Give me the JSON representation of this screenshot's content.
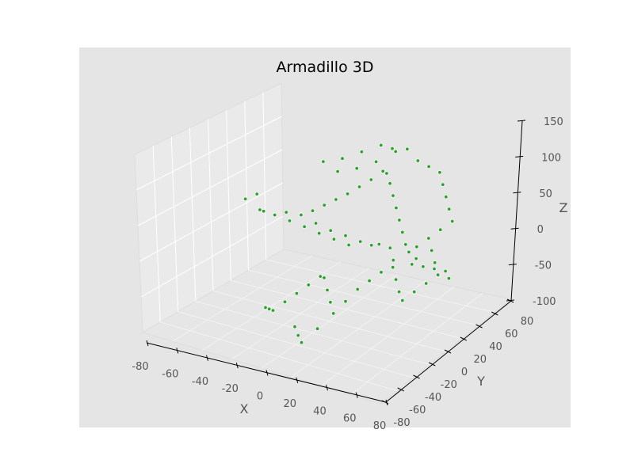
{
  "chart_data": {
    "type": "scatter",
    "projection": "3d",
    "title": "Armadillo 3D",
    "xlabel": "X",
    "ylabel": "Y",
    "zlabel": "Z",
    "xlim": [
      -80,
      80
    ],
    "ylim": [
      -80,
      80
    ],
    "zlim": [
      -100,
      150
    ],
    "xticks": [
      -80,
      -60,
      -40,
      -20,
      0,
      20,
      40,
      60,
      80
    ],
    "yticks": [
      -80,
      -60,
      -40,
      -20,
      0,
      20,
      40,
      60,
      80
    ],
    "zticks": [
      -100,
      -50,
      0,
      50,
      100,
      150
    ],
    "grid": true,
    "legend": "none",
    "colors": {
      "background": "#e5e5e5",
      "pane": "#ececec",
      "points": "#2ca02c",
      "point_edge": "#ffffff"
    },
    "series": [
      {
        "marker": "circle",
        "points": [
          [
            -60,
            0,
            40
          ],
          [
            -55,
            5,
            45
          ],
          [
            -50,
            0,
            30
          ],
          [
            -45,
            -5,
            35
          ],
          [
            -40,
            0,
            28
          ],
          [
            -35,
            5,
            30
          ],
          [
            -30,
            0,
            25
          ],
          [
            -25,
            5,
            32
          ],
          [
            -20,
            0,
            22
          ],
          [
            -15,
            5,
            25
          ],
          [
            -10,
            0,
            18
          ],
          [
            -5,
            5,
            20
          ],
          [
            0,
            0,
            15
          ],
          [
            5,
            5,
            18
          ],
          [
            10,
            0,
            12
          ],
          [
            15,
            5,
            15
          ],
          [
            20,
            10,
            8
          ],
          [
            25,
            10,
            12
          ],
          [
            30,
            15,
            5
          ],
          [
            35,
            10,
            -5
          ],
          [
            40,
            20,
            0
          ],
          [
            45,
            15,
            -10
          ],
          [
            50,
            20,
            -15
          ],
          [
            55,
            25,
            -20
          ],
          [
            60,
            30,
            -25
          ],
          [
            65,
            25,
            -28
          ],
          [
            -20,
            20,
            95
          ],
          [
            -10,
            25,
            100
          ],
          [
            0,
            30,
            110
          ],
          [
            10,
            35,
            120
          ],
          [
            20,
            30,
            125
          ],
          [
            25,
            40,
            118
          ],
          [
            15,
            45,
            105
          ],
          [
            5,
            40,
            90
          ],
          [
            -5,
            35,
            80
          ],
          [
            -15,
            30,
            75
          ],
          [
            30,
            45,
            100
          ],
          [
            35,
            50,
            90
          ],
          [
            40,
            55,
            80
          ],
          [
            45,
            50,
            70
          ],
          [
            50,
            45,
            60
          ],
          [
            55,
            40,
            50
          ],
          [
            60,
            35,
            40
          ],
          [
            55,
            30,
            30
          ],
          [
            50,
            25,
            20
          ],
          [
            45,
            20,
            10
          ],
          [
            40,
            15,
            15
          ],
          [
            35,
            20,
            25
          ],
          [
            30,
            25,
            35
          ],
          [
            25,
            30,
            45
          ],
          [
            20,
            35,
            55
          ],
          [
            15,
            40,
            65
          ],
          [
            10,
            45,
            72
          ],
          [
            5,
            50,
            68
          ],
          [
            0,
            45,
            58
          ],
          [
            -5,
            40,
            50
          ],
          [
            -10,
            35,
            42
          ],
          [
            -15,
            30,
            36
          ],
          [
            -20,
            25,
            30
          ],
          [
            -25,
            20,
            24
          ],
          [
            -30,
            15,
            20
          ],
          [
            0,
            -10,
            -30
          ],
          [
            5,
            -15,
            -40
          ],
          [
            10,
            -20,
            -50
          ],
          [
            -5,
            -5,
            -35
          ],
          [
            -10,
            -10,
            -45
          ],
          [
            -15,
            -15,
            -55
          ],
          [
            -20,
            -20,
            -65
          ],
          [
            -25,
            -25,
            -75
          ],
          [
            -30,
            -20,
            -80
          ],
          [
            -35,
            -15,
            -85
          ],
          [
            -10,
            -25,
            -90
          ],
          [
            -5,
            -30,
            -95
          ],
          [
            0,
            -35,
            -98
          ],
          [
            5,
            -25,
            -85
          ],
          [
            10,
            -15,
            -70
          ],
          [
            15,
            -10,
            -55
          ],
          [
            20,
            -5,
            -40
          ],
          [
            25,
            0,
            -30
          ],
          [
            30,
            5,
            -20
          ],
          [
            35,
            10,
            -15
          ],
          [
            40,
            5,
            -25
          ],
          [
            45,
            0,
            -35
          ],
          [
            50,
            -5,
            -40
          ],
          [
            55,
            0,
            -30
          ],
          [
            60,
            5,
            -20
          ],
          [
            65,
            10,
            -10
          ],
          [
            60,
            15,
            0
          ],
          [
            55,
            20,
            10
          ],
          [
            50,
            10,
            5
          ]
        ]
      }
    ]
  }
}
